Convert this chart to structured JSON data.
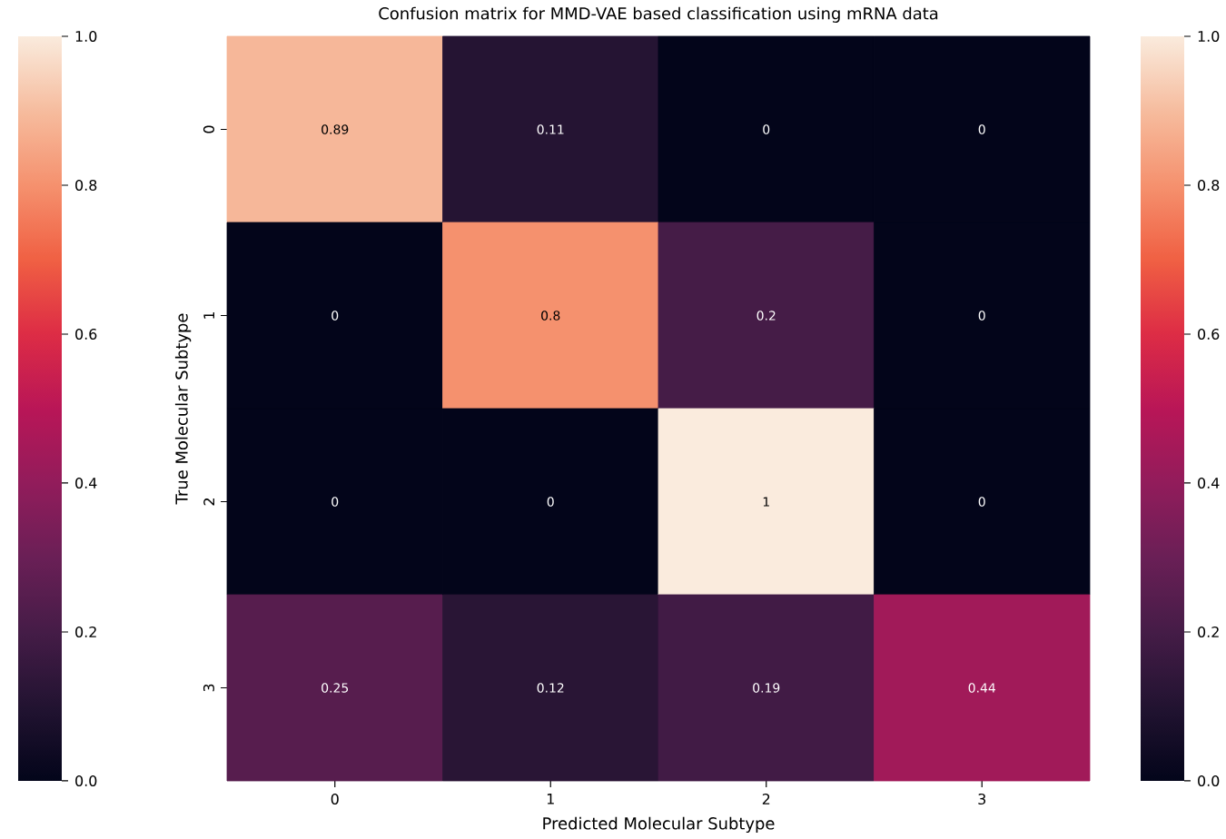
{
  "chart_data": {
    "type": "heatmap",
    "title": "Confusion matrix for MMD-VAE based classification using mRNA data",
    "xlabel": "Predicted Molecular Subtype",
    "ylabel": "True Molecular Subtype",
    "categories": [
      "0",
      "1",
      "2",
      "3"
    ],
    "y_categories": [
      "0",
      "1",
      "2",
      "3"
    ],
    "cells": [
      [
        0.89,
        0.11,
        0,
        0
      ],
      [
        0,
        0.8,
        0.2,
        0
      ],
      [
        0,
        0,
        1,
        0
      ],
      [
        0.25,
        0.12,
        0.19,
        0.44
      ]
    ],
    "data_labels": true,
    "clim": [
      0,
      1
    ],
    "cticks": [
      {
        "value": 0,
        "label": "0.0"
      },
      {
        "value": 0.2,
        "label": "0.2"
      },
      {
        "value": 0.4,
        "label": "0.4"
      },
      {
        "value": 0.6,
        "label": "0.6"
      },
      {
        "value": 0.8,
        "label": "0.8"
      },
      {
        "value": 1,
        "label": "1.0"
      }
    ]
  }
}
